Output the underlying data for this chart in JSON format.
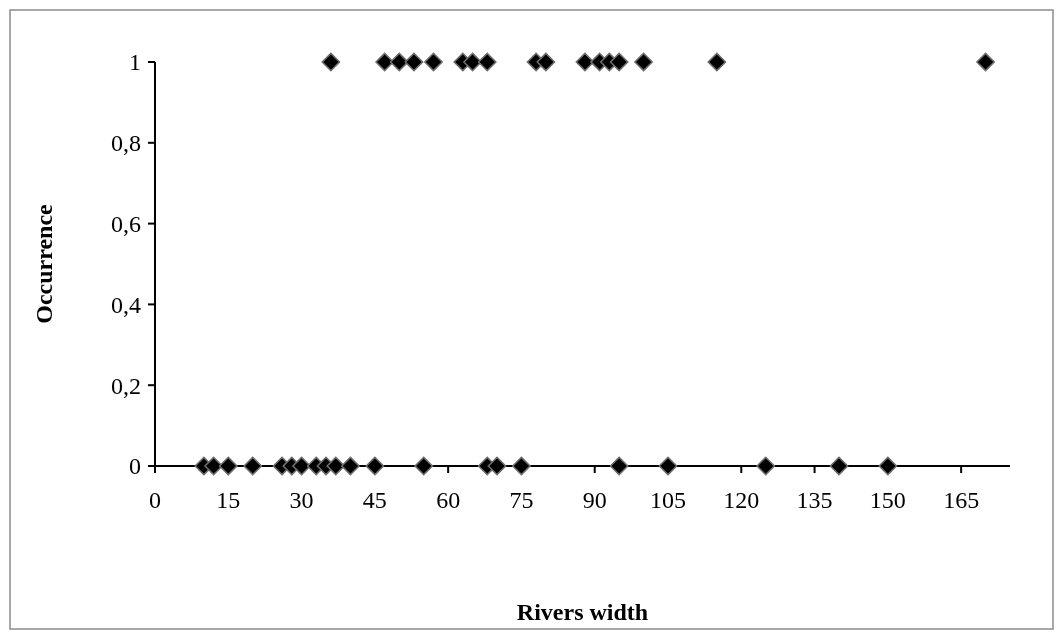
{
  "chart_data": {
    "type": "scatter",
    "xlabel": "Rivers width",
    "ylabel": "Occurrence",
    "x": [
      10,
      12,
      15,
      20,
      26,
      28,
      30,
      33,
      35,
      37,
      40,
      45,
      55,
      68,
      70,
      75,
      95,
      105,
      125,
      140,
      150,
      36,
      47,
      50,
      53,
      57,
      63,
      65,
      68,
      78,
      80,
      88,
      91,
      93,
      95,
      100,
      115,
      170
    ],
    "series": [
      {
        "color": "#000000",
        "values": [
          0,
          0,
          0,
          0,
          0,
          0,
          0,
          0,
          0,
          0,
          0,
          0,
          0,
          0,
          0,
          0,
          0,
          0,
          0,
          0,
          0,
          1,
          1,
          1,
          1,
          1,
          1,
          1,
          1,
          1,
          1,
          1,
          1,
          1,
          1,
          1,
          1,
          1
        ]
      }
    ],
    "xlim": [
      0,
      175
    ],
    "xticks": [
      0,
      15,
      30,
      45,
      60,
      75,
      90,
      105,
      120,
      135,
      150,
      165
    ],
    "ylim": [
      0,
      1
    ],
    "yticks": [
      0,
      {
        "value": 0.2,
        "label": "0,2"
      },
      {
        "value": 0.4,
        "label": "0,4"
      },
      {
        "value": 0.6,
        "label": "0,6"
      },
      {
        "value": 0.8,
        "label": "0,8"
      },
      1
    ],
    "grid": false,
    "marker": "diamond"
  }
}
